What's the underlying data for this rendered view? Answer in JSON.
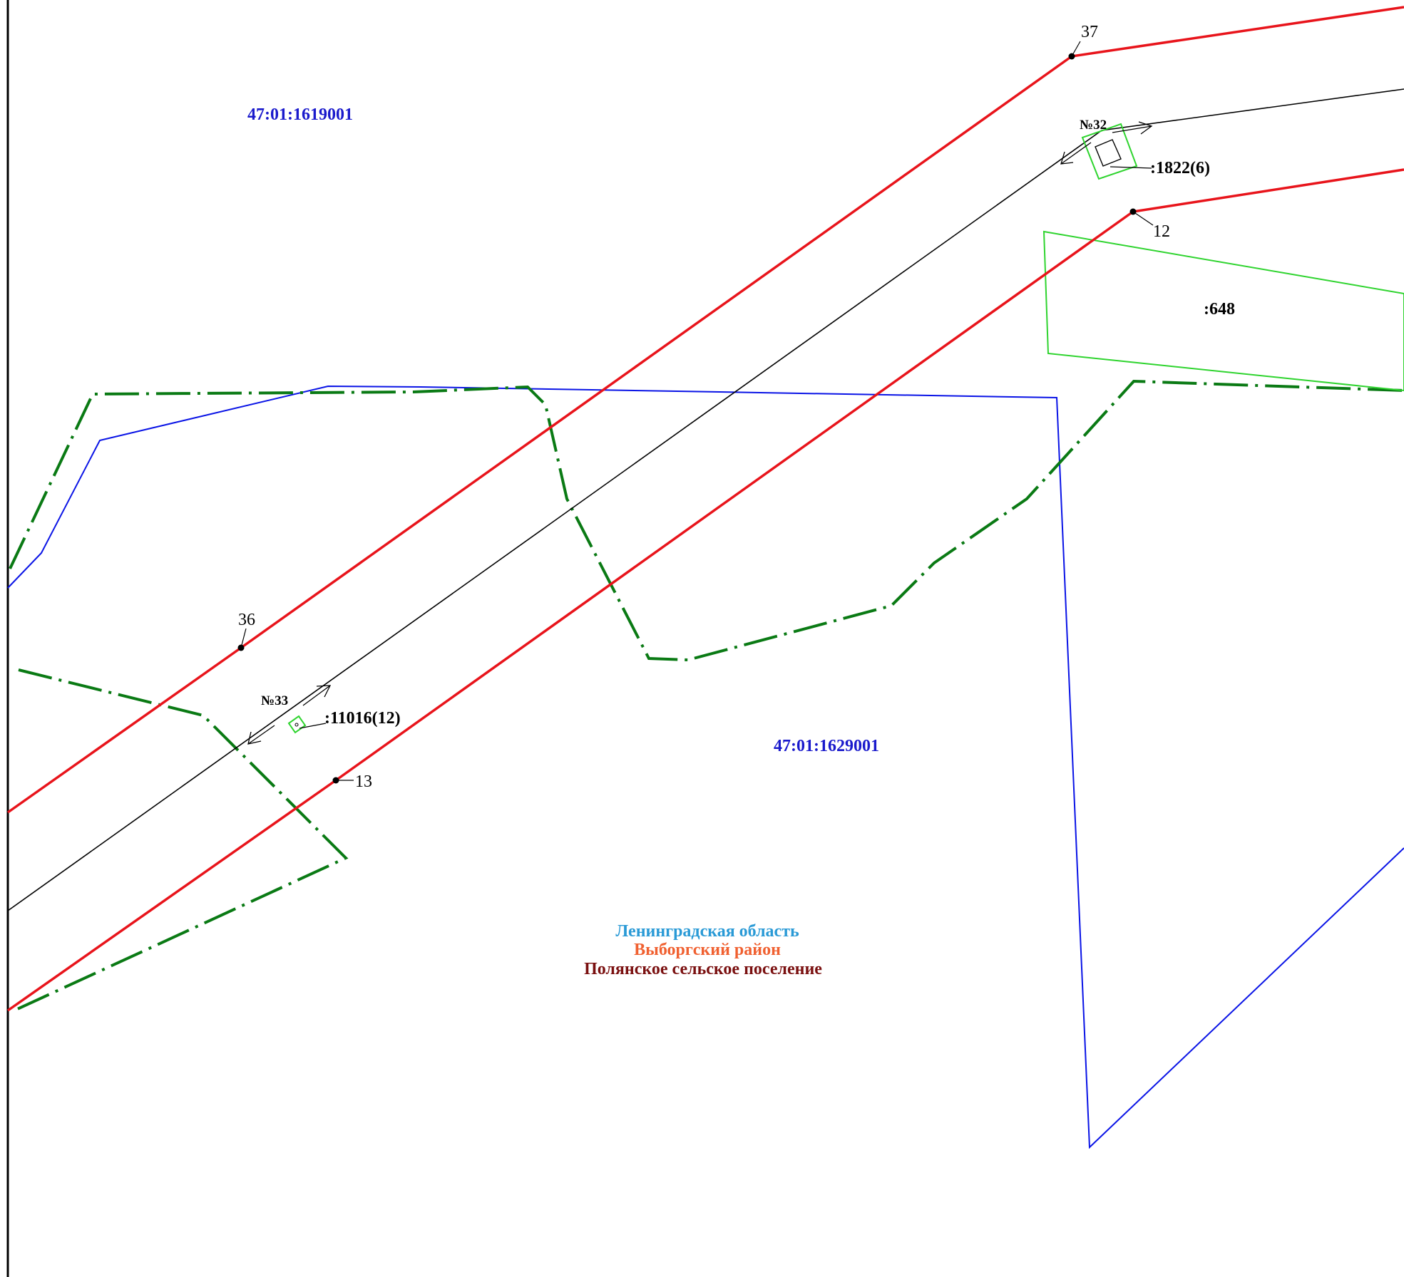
{
  "colors": {
    "red_border": "#e8141b",
    "blue_boundary": "#0a14e6",
    "green_dashdot": "#0a7a14",
    "parcel_green": "#2fd42f",
    "axis_black": "#000000",
    "quarter_blue": "#1a1acc",
    "region_oblast": "#2a9ad6",
    "region_raion": "#f06030",
    "region_settlement": "#7a1010"
  },
  "quarters": [
    {
      "id": "q1",
      "label": "47:01:1619001"
    },
    {
      "id": "q2",
      "label": "47:01:1629001"
    }
  ],
  "parcels": {
    "p648": ":648",
    "p1822": ":1822(6)",
    "p11016": ":11016(12)"
  },
  "objects": {
    "n32": "№32",
    "n33": "№33"
  },
  "points": {
    "p37": "37",
    "p36": "36",
    "p12": "12",
    "p13": "13"
  },
  "region": {
    "oblast": "Ленинградская область",
    "raion": "Выборгский район",
    "settlement": "Полянское сельское поселение"
  }
}
